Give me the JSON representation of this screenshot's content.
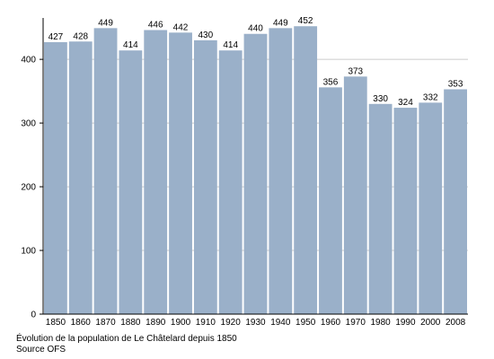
{
  "chart_data": {
    "type": "bar",
    "title": "Évolution de la population de Le Châtelard depuis 1850",
    "source": "Source OFS",
    "xlabel": "",
    "ylabel": "",
    "categories": [
      "1850",
      "1860",
      "1870",
      "1880",
      "1890",
      "1900",
      "1910",
      "1920",
      "1930",
      "1940",
      "1950",
      "1960",
      "1970",
      "1980",
      "1990",
      "2000",
      "2008"
    ],
    "values": [
      427,
      428,
      449,
      414,
      446,
      442,
      430,
      414,
      440,
      449,
      452,
      356,
      373,
      330,
      324,
      332,
      353
    ],
    "data_labels": [
      "427",
      "428",
      "449",
      "414",
      "446",
      "442",
      "430",
      "414",
      "440",
      "449",
      "452",
      "356",
      "373",
      "330",
      "324",
      "332",
      "353"
    ],
    "y_ticks": [
      0,
      100,
      200,
      300,
      400
    ],
    "y_tick_labels": [
      "0",
      "100",
      "200",
      "300",
      "400"
    ],
    "ylim": [
      0,
      465
    ],
    "grid": true,
    "legend": "none",
    "bar_color": "#9ab0c9",
    "grid_color": "#cccccc",
    "axis_color": "#000000"
  }
}
